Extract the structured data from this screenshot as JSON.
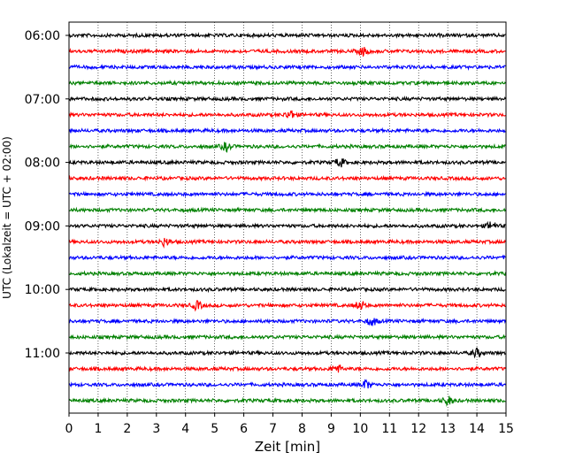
{
  "chart_data": {
    "type": "line",
    "title": "",
    "xlabel": "Zeit  [min]",
    "ylabel": "UTC (Lokalzeit = UTC + 02:00)",
    "xlim": [
      0,
      15
    ],
    "xticks": [
      0,
      1,
      2,
      3,
      4,
      5,
      6,
      7,
      8,
      9,
      10,
      11,
      12,
      13,
      14,
      15
    ],
    "xtick_labels": [
      "0",
      "1",
      "2",
      "3",
      "4",
      "5",
      "6",
      "7",
      "8",
      "9",
      "10",
      "11",
      "12",
      "13",
      "14",
      "15"
    ],
    "ytick_labels": [
      "06:00",
      "07:00",
      "08:00",
      "09:00",
      "10:00",
      "11:00"
    ],
    "grid": "vertical dotted",
    "trace_colors": [
      "#000000",
      "#ff0000",
      "#0000ff",
      "#008000"
    ],
    "traces": [
      "06:00",
      "06:15",
      "06:30",
      "06:45",
      "07:00",
      "07:15",
      "07:30",
      "07:45",
      "08:00",
      "08:15",
      "08:30",
      "08:45",
      "09:00",
      "09:15",
      "09:30",
      "09:45",
      "10:00",
      "10:15",
      "10:30",
      "10:45",
      "11:00",
      "11:15",
      "11:30",
      "11:45"
    ],
    "events": [
      {
        "trace": 1,
        "x": 10.1
      },
      {
        "trace": 5,
        "x": 7.6
      },
      {
        "trace": 7,
        "x": 5.4
      },
      {
        "trace": 8,
        "x": 9.3
      },
      {
        "trace": 12,
        "x": 14.5
      },
      {
        "trace": 13,
        "x": 3.3
      },
      {
        "trace": 17,
        "x": 10.0
      },
      {
        "trace": 17,
        "x": 4.4
      },
      {
        "trace": 18,
        "x": 10.4
      },
      {
        "trace": 20,
        "x": 14.0
      },
      {
        "trace": 21,
        "x": 9.2
      },
      {
        "trace": 22,
        "x": 10.2
      },
      {
        "trace": 23,
        "x": 13.0
      }
    ]
  }
}
